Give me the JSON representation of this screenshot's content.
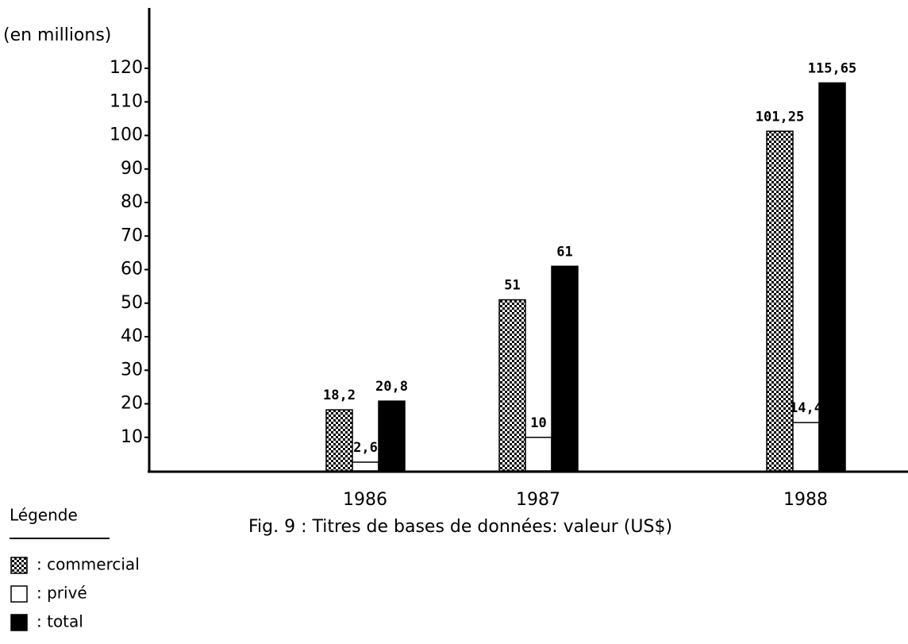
{
  "chart_data": {
    "type": "bar",
    "title": "Fig. 9 : Titres de bases de données: valeur (US$)",
    "y_label": "(en millions)",
    "legend_title": "Légende",
    "categories": [
      "1986",
      "1987",
      "1988"
    ],
    "series": [
      {
        "name": ": commercial",
        "color": "#000000",
        "pattern": "checker",
        "values": [
          18.2,
          51,
          101.25
        ],
        "value_labels": [
          "18,2",
          "51",
          "101,25"
        ]
      },
      {
        "name": ": privé",
        "color": "#ffffff",
        "values": [
          2.6,
          10,
          14.4
        ],
        "value_labels": [
          "2,6",
          "10",
          "14,4"
        ]
      },
      {
        "name": ": total",
        "color": "#000000",
        "values": [
          20.8,
          61,
          115.65
        ],
        "value_labels": [
          "20,8",
          "61",
          "115,65"
        ]
      }
    ],
    "ylim": [
      0,
      138
    ],
    "yticks": [
      10,
      20,
      30,
      40,
      50,
      60,
      70,
      80,
      90,
      100,
      110,
      120
    ],
    "legend": "bottom-left"
  }
}
